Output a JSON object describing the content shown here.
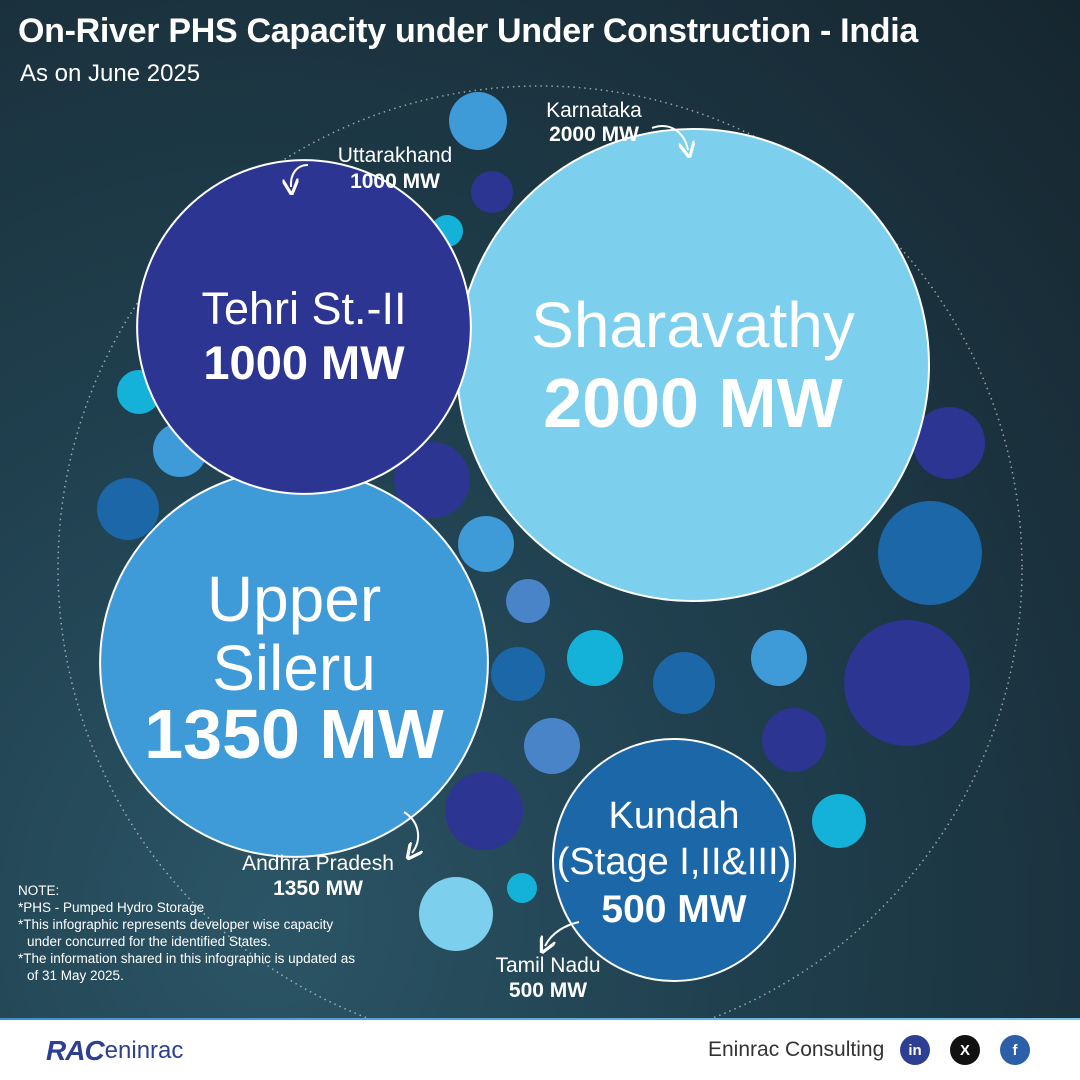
{
  "title": "On-River PHS Capacity under Under Construction - India",
  "subtitle": "As on June 2025",
  "chart_data": {
    "type": "bubble",
    "unit": "MW",
    "bubbles": [
      {
        "project": "Sharavathy",
        "state": "Karnataka",
        "capacity_mw": 2000,
        "label_name": "Sharavathy",
        "label_value": "2000 MW",
        "callout_state": "Karnataka",
        "callout_value": "2000 MW",
        "color": "#7dcfee"
      },
      {
        "project": "Upper Sileru",
        "state": "Andhra Pradesh",
        "capacity_mw": 1350,
        "label_name": "Upper Sileru",
        "label_value": "1350 MW",
        "callout_state": "Andhra Pradesh",
        "callout_value": "1350 MW",
        "color": "#3f9ad8"
      },
      {
        "project": "Tehri St.-II",
        "state": "Uttarakhand",
        "capacity_mw": 1000,
        "label_name": "Tehri St.-II",
        "label_value": "1000 MW",
        "callout_state": "Uttarakhand",
        "callout_value": "1000 MW",
        "color": "#2c3591"
      },
      {
        "project": "Kundah (Stage I,II&III)",
        "state": "Tamil Nadu",
        "capacity_mw": 500,
        "label_name": "Kundah (Stage I,II&III)",
        "label_value": "500 MW",
        "callout_state": "Tamil Nadu",
        "callout_value": "500 MW",
        "color": "#1b67a8"
      }
    ]
  },
  "note": {
    "heading": "NOTE:",
    "line1": "*PHS - Pumped Hydro Storage",
    "line2": "*This infographic represents developer wise capacity under concurred for the identified States.",
    "line3": "*The information shared in this infographic is updated as of 31 May 2025."
  },
  "footer": {
    "logo_text_a": "RAC",
    "logo_text_b": "eninrac",
    "brand": "Eninrac Consulting",
    "social": [
      {
        "icon": "linkedin-icon",
        "glyph": "in",
        "color": "#2c3f93"
      },
      {
        "icon": "x-icon",
        "glyph": "X",
        "color": "#111111"
      },
      {
        "icon": "facebook-icon",
        "glyph": "f",
        "color": "#2c5fa8"
      }
    ]
  },
  "colors": {
    "navy": "#2c3591",
    "royal": "#1b67a8",
    "mid": "#3f9ad8",
    "sky": "#7dcfee",
    "cyan": "#14b2d8",
    "steel": "#4a84c8"
  }
}
